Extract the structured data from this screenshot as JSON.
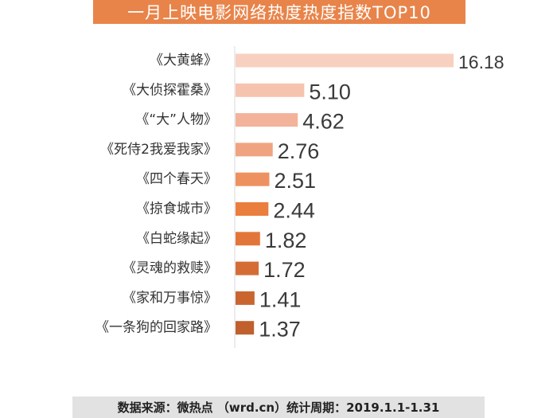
{
  "chart_data": {
    "type": "bar",
    "orientation": "horizontal",
    "title": "一月上映电影网络热度热度指数TOP10",
    "categories": [
      "《大黄蜂》",
      "《大侦探霍桑》",
      "《“大”人物》",
      "《死侍2我爱我家》",
      "《四个春天》",
      "《掠食城市》",
      "《白蛇缘起》",
      "《灵魂的救赎》",
      "《家和万事惊》",
      "《一条狗的回家路》"
    ],
    "values": [
      16.18,
      5.1,
      4.62,
      2.76,
      2.51,
      2.44,
      1.82,
      1.72,
      1.41,
      1.37
    ],
    "value_labels": [
      "16.18",
      "5.10",
      "4.62",
      "2.76",
      "2.51",
      "2.44",
      "1.82",
      "1.72",
      "1.41",
      "1.37"
    ],
    "bar_colors": [
      "#f8d0c0",
      "#f6c4ae",
      "#f3b39a",
      "#f0a380",
      "#ee9160",
      "#ea7e3e",
      "#e2763a",
      "#d46d35",
      "#c96630",
      "#c0602d"
    ],
    "xlim": [
      0,
      16.18
    ],
    "grid": false,
    "legend": "none"
  },
  "footer": {
    "source": "数据来源：微热点 （wrd.cn）",
    "period": "统计周期：2019.1.1-1.31"
  }
}
